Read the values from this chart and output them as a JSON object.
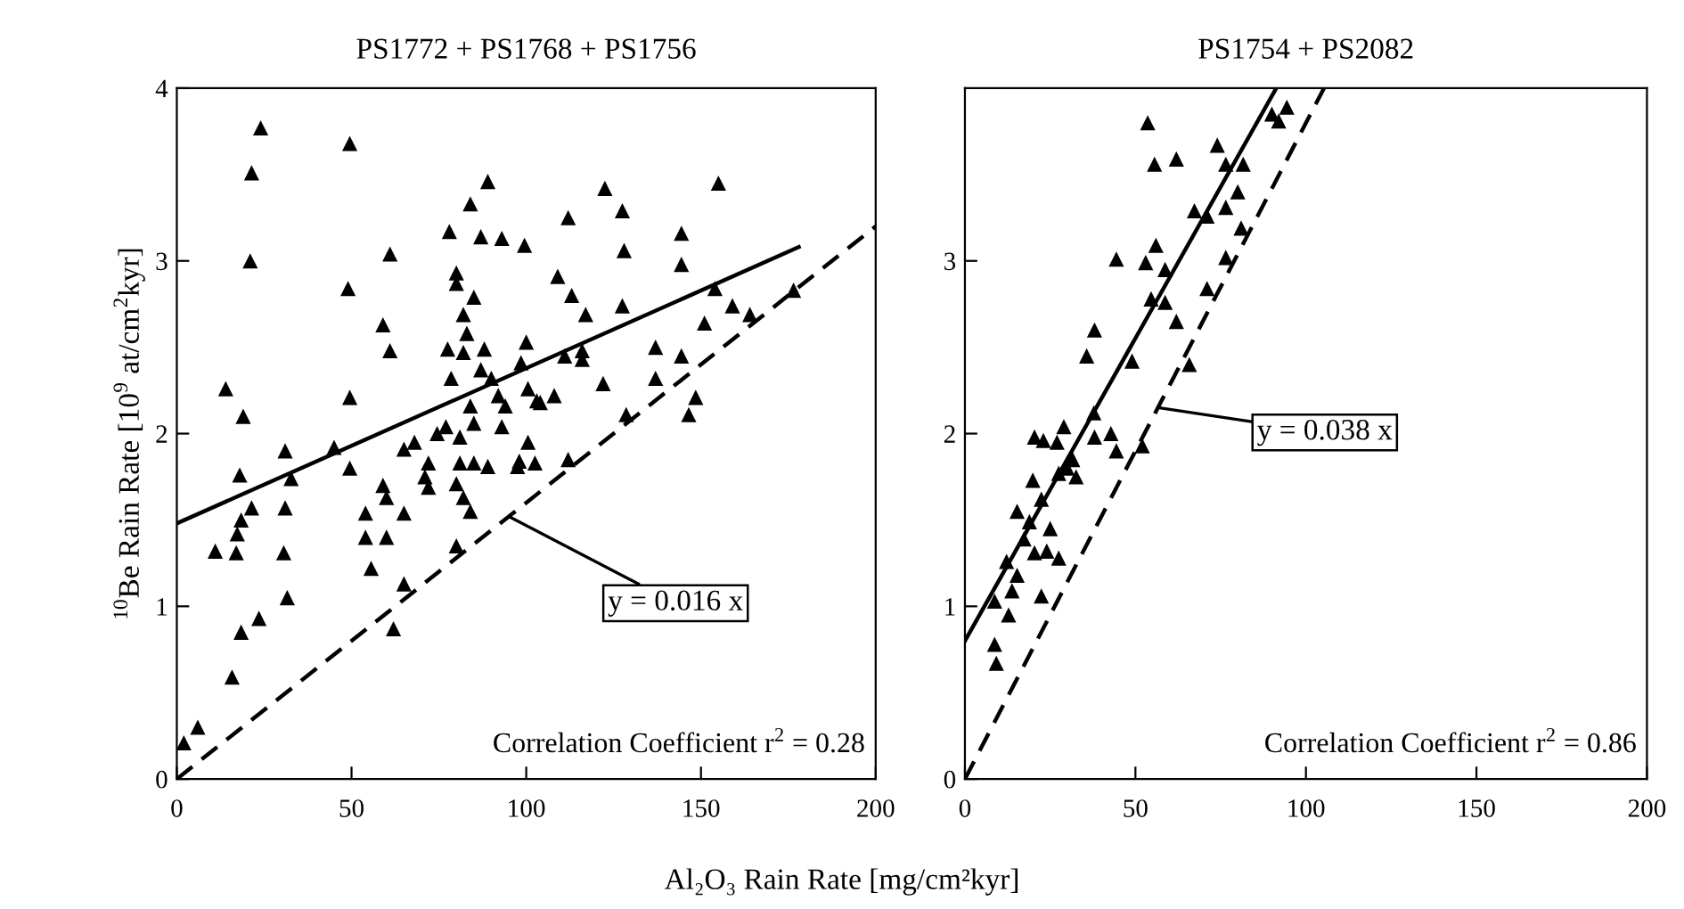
{
  "chart_data": [
    {
      "type": "scatter",
      "title": "PS1772 + PS1768 + PS1756",
      "xlabel": "Al₂O₃ Rain Rate [mg/cm²kyr]",
      "ylabel": "$^{10}$Be Rain Rate [10$^{9}$ at/cm$^{2}$kyr]",
      "xlim": [
        0,
        200
      ],
      "ylim": [
        0,
        4
      ],
      "xticks": [
        0,
        50,
        100,
        150,
        200
      ],
      "yticks": [
        0,
        1,
        2,
        3,
        4
      ],
      "grid": false,
      "legend": false,
      "annotations": [
        {
          "text": "y = 0.016 x",
          "x": 95,
          "y": 1.52
        },
        "Correlation Coefficient r$^{2}$ = 0.28"
      ],
      "series": [
        {
          "color": "#000000",
          "marker": "triangle",
          "x": [
            24,
            21.4,
            21,
            49.5,
            14,
            19,
            49.5,
            49,
            61,
            59,
            61,
            31,
            45,
            18,
            78,
            84,
            89,
            87,
            93,
            99.5,
            80,
            80,
            85,
            82,
            83,
            77.5,
            82,
            88,
            100,
            98.5,
            78.5,
            87,
            90,
            92,
            100.5,
            103,
            84,
            94,
            77,
            85,
            93,
            81,
            65,
            68,
            74.5,
            100.5,
            72,
            81,
            85,
            89,
            97.5,
            102.5,
            32.7,
            49.5,
            21.4,
            18.4,
            17.3,
            17,
            11,
            31,
            30.6,
            31.6,
            23.5,
            18.4,
            15.8,
            6,
            2,
            54,
            54,
            60,
            55.6,
            59,
            60,
            65,
            65,
            62,
            71,
            72,
            80,
            82,
            84,
            80,
            122.5,
            155,
            112,
            127.5,
            128,
            144.4,
            144.4,
            109,
            113,
            117,
            127.5,
            154,
            159,
            164,
            176.5,
            151,
            111,
            116,
            116,
            137,
            144.4,
            122,
            137,
            104,
            108,
            148.5,
            146.5,
            128.6,
            98,
            112
          ],
          "values": [
            3.77,
            3.51,
            3.0,
            3.68,
            2.26,
            2.1,
            2.21,
            2.84,
            3.04,
            2.63,
            2.48,
            1.9,
            1.92,
            1.76,
            3.17,
            3.33,
            3.46,
            3.14,
            3.13,
            3.09,
            2.93,
            2.87,
            2.79,
            2.69,
            2.58,
            2.49,
            2.47,
            2.49,
            2.53,
            2.41,
            2.32,
            2.37,
            2.32,
            2.22,
            2.26,
            2.19,
            2.16,
            2.16,
            2.04,
            2.06,
            2.04,
            1.98,
            1.91,
            1.95,
            2.0,
            1.95,
            1.83,
            1.83,
            1.83,
            1.81,
            1.81,
            1.83,
            1.74,
            1.8,
            1.57,
            1.5,
            1.42,
            1.31,
            1.32,
            1.57,
            1.31,
            1.05,
            0.93,
            0.85,
            0.59,
            0.3,
            0.21,
            1.54,
            1.4,
            1.4,
            1.22,
            1.7,
            1.63,
            1.54,
            1.13,
            0.87,
            1.75,
            1.69,
            1.71,
            1.63,
            1.55,
            1.35,
            3.42,
            3.45,
            3.25,
            3.29,
            3.06,
            3.16,
            2.98,
            2.91,
            2.8,
            2.69,
            2.74,
            2.84,
            2.74,
            2.69,
            2.83,
            2.64,
            2.45,
            2.48,
            2.43,
            2.5,
            2.45,
            2.29,
            2.32,
            2.18,
            2.22,
            2.21,
            2.11,
            2.11,
            1.84,
            1.85
          ]
        },
        {
          "type": "line",
          "color": "#000000",
          "line_style": "solid",
          "x": [
            0,
            178
          ],
          "values": [
            1.48,
            3.08
          ]
        },
        {
          "type": "line",
          "color": "#000000",
          "line_style": "dashed",
          "x": [
            0,
            200
          ],
          "values": [
            0,
            3.2
          ]
        }
      ]
    },
    {
      "type": "scatter",
      "title": "PS1754 + PS2082",
      "xlim": [
        0,
        200
      ],
      "ylim": [
        0,
        4
      ],
      "xticks": [
        0,
        50,
        100,
        150,
        200
      ],
      "yticks": [
        0,
        1,
        2,
        3
      ],
      "grid": false,
      "legend": false,
      "annotations": [
        {
          "text": "y = 0.038 x",
          "x": 56.6,
          "y": 2.15
        },
        "Correlation Coefficient r$^{2}$ = 0.86"
      ],
      "series": [
        {
          "color": "#000000",
          "marker": "triangle",
          "x": [
            53.6,
            55.6,
            62,
            74,
            76.5,
            81.6,
            90,
            94.4,
            92,
            80,
            76.5,
            67.3,
            71,
            81,
            76.5,
            71,
            44.4,
            53,
            56,
            58.7,
            54.6,
            58.7,
            62,
            38,
            35.7,
            49,
            65.8,
            20.4,
            23,
            27,
            29,
            37.8,
            38,
            42.8,
            44.4,
            52,
            31.6,
            30,
            19.9,
            27.5,
            32.6,
            22.4,
            15.3,
            18.9,
            25,
            17.3,
            20.4,
            24,
            27.5,
            12.2,
            15.3,
            13.8,
            22.4,
            8.7,
            12.8,
            8.7,
            9.2
          ],
          "values": [
            3.8,
            3.56,
            3.59,
            3.67,
            3.56,
            3.56,
            3.85,
            3.89,
            3.81,
            3.4,
            3.31,
            3.29,
            3.26,
            3.19,
            3.02,
            2.84,
            3.01,
            2.99,
            3.09,
            2.95,
            2.78,
            2.76,
            2.65,
            2.6,
            2.45,
            2.42,
            2.4,
            1.98,
            1.96,
            1.95,
            2.04,
            2.12,
            1.98,
            2.0,
            1.9,
            1.93,
            1.85,
            1.8,
            1.73,
            1.77,
            1.75,
            1.62,
            1.55,
            1.49,
            1.45,
            1.39,
            1.31,
            1.32,
            1.28,
            1.26,
            1.18,
            1.09,
            1.06,
            1.03,
            0.95,
            0.78,
            0.67
          ]
        },
        {
          "type": "line",
          "color": "#000000",
          "line_style": "solid",
          "x": [
            0,
            91.3
          ],
          "values": [
            0.8,
            4
          ]
        },
        {
          "type": "line",
          "color": "#000000",
          "line_style": "dashed",
          "x": [
            0,
            105.3
          ],
          "values": [
            0,
            4
          ]
        }
      ]
    }
  ]
}
